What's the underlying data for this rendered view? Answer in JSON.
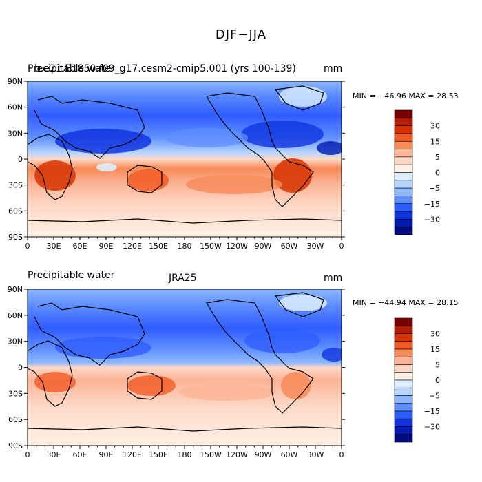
{
  "figure": {
    "title": "DJF−JJA"
  },
  "panels": [
    {
      "left_title": "Precipitable water",
      "center_title": "b.e21.B1850.f09_g17.cesm2-cmip5.001 (yrs 100-139)",
      "units": "mm",
      "stats": "MIN = −46.96 MAX =  28.53"
    },
    {
      "left_title": "Precipitable water",
      "center_title": "JRA25",
      "units": "mm",
      "stats": "MIN = −44.94 MAX =  28.15"
    }
  ],
  "axes": {
    "x_labels": [
      "0",
      "30E",
      "60E",
      "90E",
      "120E",
      "150E",
      "180",
      "150W",
      "120W",
      "90W",
      "60W",
      "30W",
      "0"
    ],
    "y_labels": [
      "90N",
      "60N",
      "30N",
      "0",
      "30S",
      "60S",
      "90S"
    ]
  },
  "colorbar": {
    "labels": [
      "30",
      "15",
      "5",
      "0",
      "−5",
      "−15",
      "−30"
    ],
    "colors": [
      "#7a0000",
      "#b51d00",
      "#d63300",
      "#f25b24",
      "#f88a58",
      "#fbb496",
      "#fdd8c6",
      "#fff1e6",
      "#dceeff",
      "#b6d5ff",
      "#8db8ff",
      "#5f8fff",
      "#2f5cff",
      "#0f34e0",
      "#0019b0",
      "#000a80"
    ]
  },
  "chart_data": [
    {
      "type": "heatmap",
      "title": "DJF−JJA",
      "xlabel": "",
      "ylabel": "",
      "xlim": [
        0,
        360
      ],
      "ylim": [
        -90,
        90
      ],
      "colorbar_levels": [
        30,
        15,
        5,
        0,
        -5,
        -15,
        -30
      ],
      "series": [
        {
          "name": "b.e21.B1850.f09_g17.cesm2-cmip5.001 (yrs 100-139)",
          "min": -46.96,
          "max": 28.53
        },
        {
          "name": "JRA25",
          "min": -44.94,
          "max": 28.15
        }
      ]
    }
  ]
}
